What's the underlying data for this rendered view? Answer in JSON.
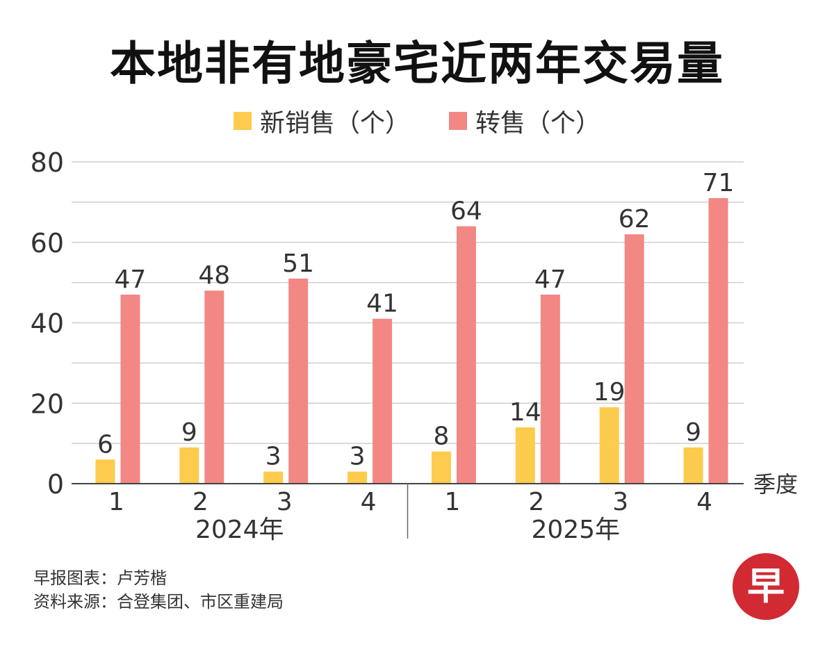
{
  "title": "本地非有地豪宅近两年交易量",
  "legend": [
    {
      "label": "新销售（个）",
      "color": "#fdcb4d"
    },
    {
      "label": "转售（个）",
      "color": "#f28784"
    }
  ],
  "chart_data": {
    "type": "bar",
    "title": "本地非有地豪宅近两年交易量",
    "xlabel": "季度",
    "ylabel": "",
    "ylim": [
      0,
      80
    ],
    "yticks": [
      0,
      20,
      40,
      60,
      80
    ],
    "grid": true,
    "categories": [
      "1",
      "2",
      "3",
      "4",
      "1",
      "2",
      "3",
      "4"
    ],
    "groups": [
      {
        "label": "2024年",
        "start": 0,
        "end": 3
      },
      {
        "label": "2025年",
        "start": 4,
        "end": 7
      }
    ],
    "series": [
      {
        "name": "新销售（个）",
        "color": "#fdcb4d",
        "values": [
          6,
          9,
          3,
          3,
          8,
          14,
          19,
          9
        ]
      },
      {
        "name": "转售（个）",
        "color": "#f28784",
        "values": [
          47,
          48,
          51,
          41,
          64,
          47,
          62,
          71
        ]
      }
    ]
  },
  "source": {
    "line1": "早报图表：卢芳楷",
    "line2": "资料来源：合登集团、市区重建局"
  },
  "logo": {
    "text": "早",
    "color": "#d12a33"
  }
}
